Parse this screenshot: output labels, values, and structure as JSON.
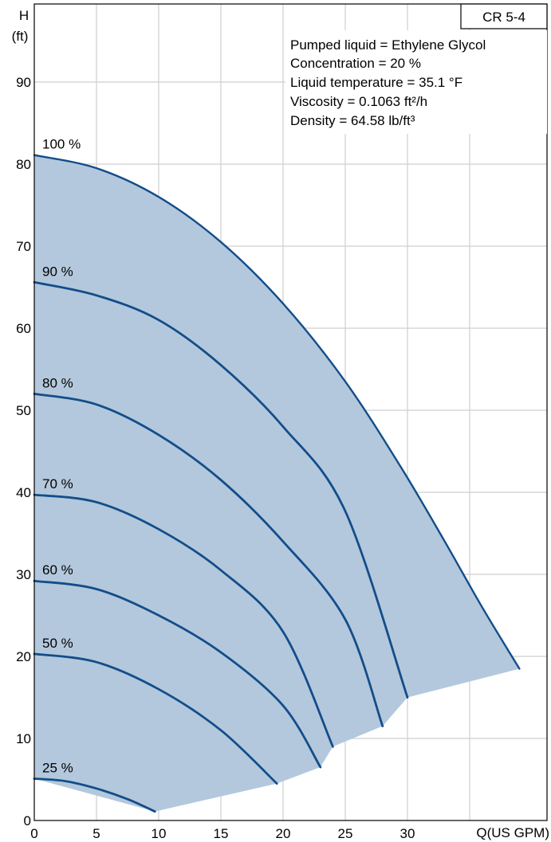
{
  "chart_data": {
    "type": "line",
    "title": "CR 5-4",
    "xlabel": "Q(US GPM)",
    "ylabel": "H",
    "ylabel_unit": "(ft)",
    "xlim": [
      0,
      40
    ],
    "ylim": [
      0,
      100
    ],
    "x_ticks": [
      "0",
      "5",
      "10",
      "15",
      "20",
      "25",
      "30"
    ],
    "y_ticks": [
      "0",
      "10",
      "20",
      "30",
      "40",
      "50",
      "60",
      "70",
      "80",
      "90"
    ],
    "grid": true,
    "info": [
      "Pumped liquid = Ethylene Glycol",
      "Concentration = 20 %",
      "Liquid temperature = 35.1 °F",
      "Viscosity = 0.1063 ft²/h",
      "Density = 64.58 lb/ft³"
    ],
    "series": [
      {
        "name": "100 %",
        "x": [
          0,
          5,
          10,
          15,
          20,
          25,
          29.5,
          33,
          36,
          39
        ],
        "y": [
          81.1,
          79.5,
          76,
          70.5,
          63,
          53.5,
          43,
          34,
          26,
          18.5
        ]
      },
      {
        "name": "90 %",
        "x": [
          0,
          5,
          10,
          15,
          20,
          25,
          30
        ],
        "y": [
          65.6,
          64,
          61,
          55.5,
          48,
          37.7,
          15
        ]
      },
      {
        "name": "80 %",
        "x": [
          0,
          5,
          10,
          15,
          20,
          25,
          28
        ],
        "y": [
          52,
          50.7,
          47,
          41.5,
          34,
          24.5,
          11.5
        ]
      },
      {
        "name": "70 %",
        "x": [
          0,
          5,
          10,
          15,
          20,
          24
        ],
        "y": [
          39.7,
          38.8,
          35.5,
          30.5,
          23,
          9
        ]
      },
      {
        "name": "60 %",
        "x": [
          0,
          5,
          10,
          15,
          20,
          23
        ],
        "y": [
          29.2,
          28.2,
          25,
          20.5,
          14,
          6.5
        ]
      },
      {
        "name": "50 %",
        "x": [
          0,
          5,
          10,
          15,
          19.5
        ],
        "y": [
          20.3,
          19.3,
          16,
          11,
          4.5
        ]
      },
      {
        "name": "25 %",
        "x": [
          0,
          2.5,
          5,
          7.5,
          9.7
        ],
        "y": [
          5.1,
          4.8,
          3.9,
          2.6,
          1.1
        ]
      }
    ]
  }
}
